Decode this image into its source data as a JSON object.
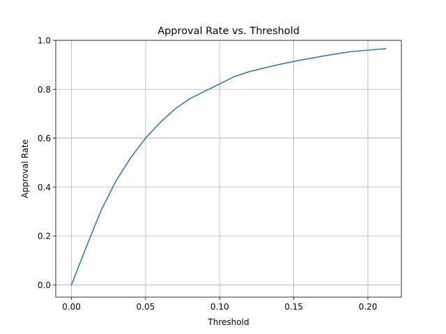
{
  "chart_data": {
    "type": "line",
    "title": "Approval Rate vs. Threshold",
    "xlabel": "Threshold",
    "ylabel": "Approval Rate",
    "xlim": [
      -0.0106,
      0.2226
    ],
    "ylim": [
      -0.05,
      1.0
    ],
    "xticks": [
      0.0,
      0.05,
      0.1,
      0.15,
      0.2
    ],
    "xtick_labels": [
      "0.00",
      "0.05",
      "0.10",
      "0.15",
      "0.20"
    ],
    "yticks": [
      0.0,
      0.2,
      0.4,
      0.6,
      0.8,
      1.0
    ],
    "ytick_labels": [
      "0.0",
      "0.2",
      "0.4",
      "0.6",
      "0.8",
      "1.0"
    ],
    "grid": true,
    "series": [
      {
        "color": "#1f77b4",
        "x": [
          0.0,
          0.01,
          0.02,
          0.03,
          0.04,
          0.05,
          0.06,
          0.07,
          0.08,
          0.09,
          0.1,
          0.11,
          0.12,
          0.13,
          0.14,
          0.15,
          0.16,
          0.17,
          0.18,
          0.19,
          0.2,
          0.212
        ],
        "y": [
          0.0,
          0.155,
          0.305,
          0.425,
          0.52,
          0.6,
          0.665,
          0.72,
          0.762,
          0.792,
          0.822,
          0.852,
          0.872,
          0.887,
          0.901,
          0.914,
          0.925,
          0.936,
          0.946,
          0.955,
          0.96,
          0.966
        ]
      }
    ]
  }
}
